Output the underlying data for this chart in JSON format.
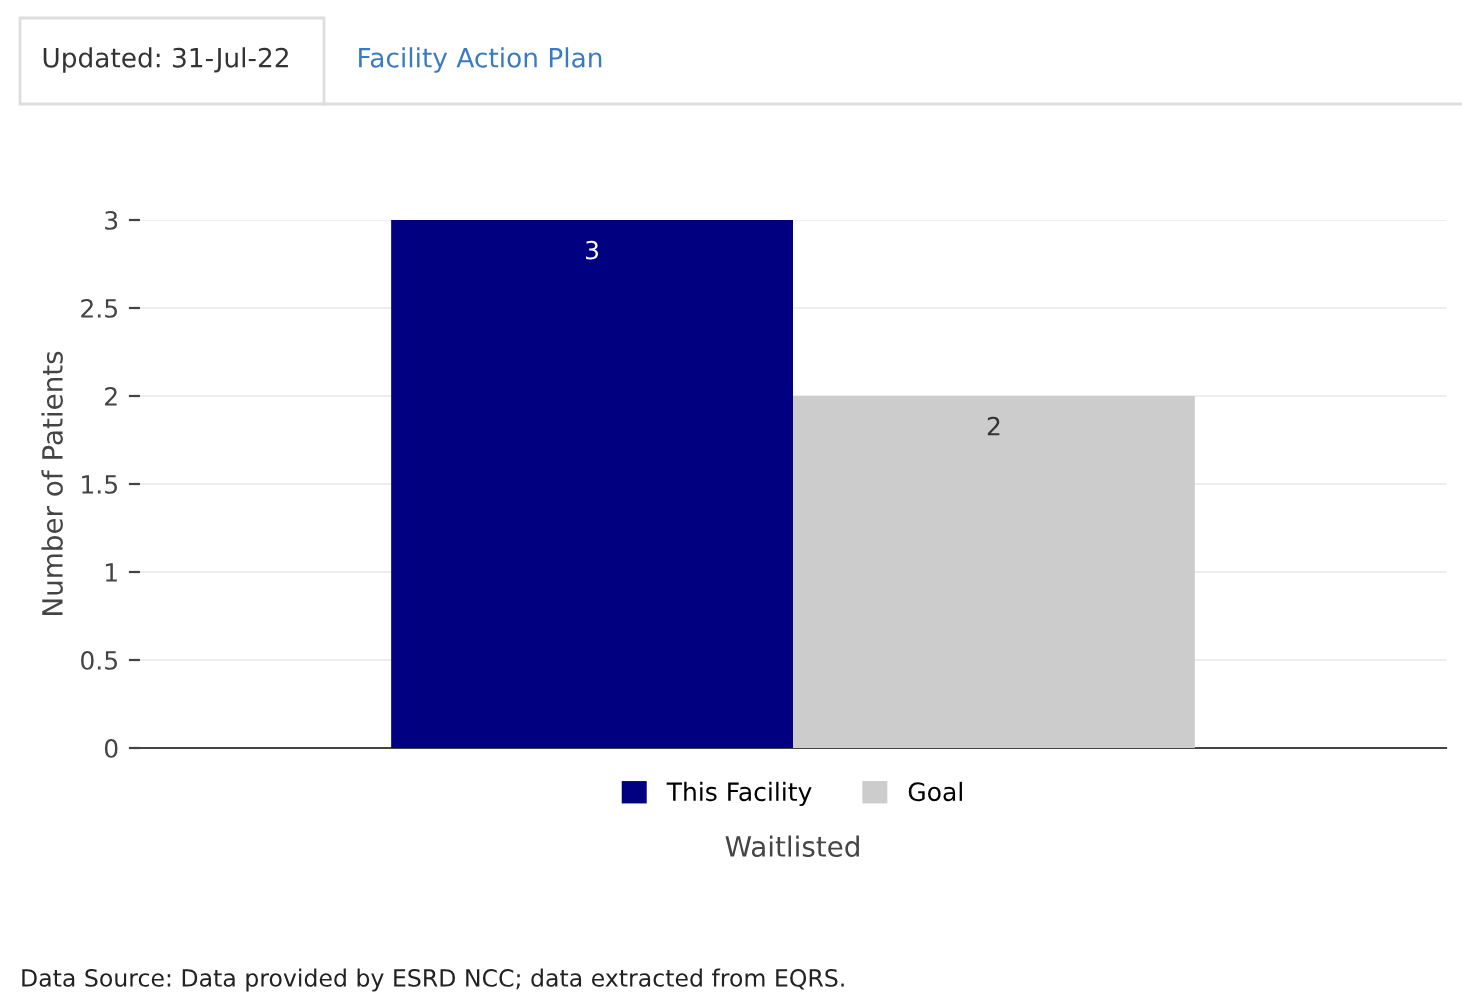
{
  "chart_data": {
    "type": "bar",
    "xlabel": "Waitlisted",
    "ylabel": "Number of Patients",
    "categories": [
      null
    ],
    "series": [
      {
        "name": "This Facility",
        "color": "#000080",
        "values": [
          3
        ]
      },
      {
        "name": "Goal",
        "color": "#cccccc",
        "values": [
          2
        ]
      }
    ],
    "ylim": [
      0,
      3
    ],
    "yticks": [
      0,
      0.5,
      1,
      1.5,
      2,
      2.5,
      3
    ],
    "grid": "y",
    "legend": "bottom",
    "data_labels": true,
    "annotations": [
      "Updated: 31-Jul-22",
      "Facility Action Plan",
      "Data Source: Data provided by ESRD NCC; data extracted from EQRS."
    ]
  }
}
